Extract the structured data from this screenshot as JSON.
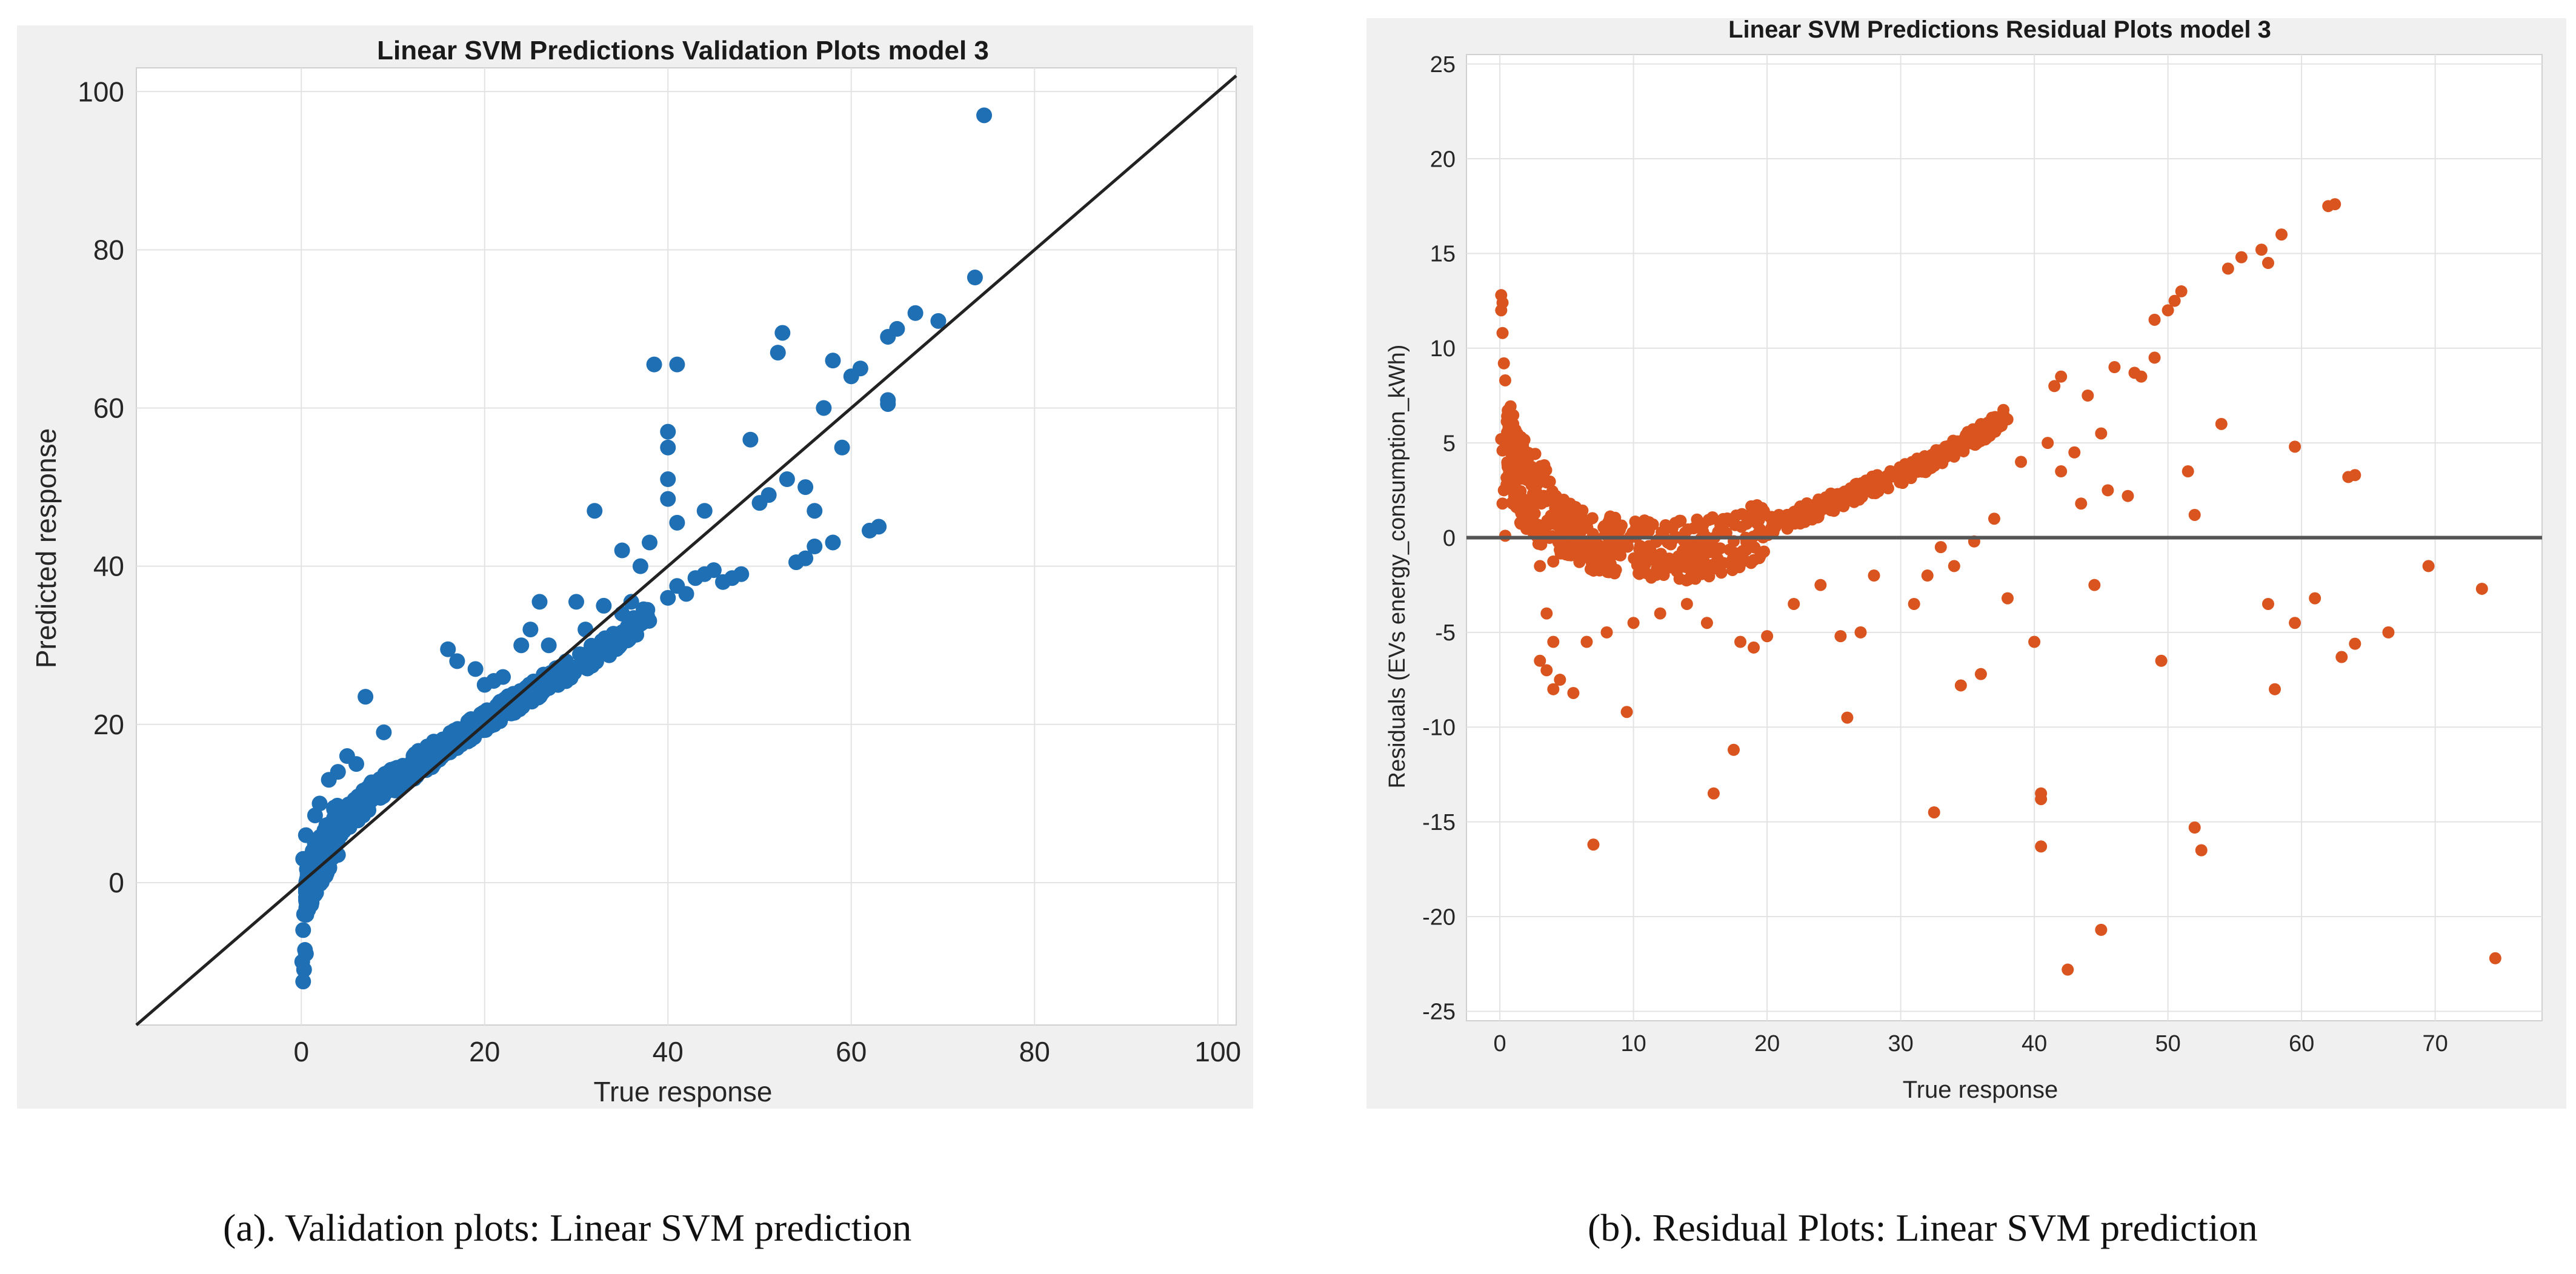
{
  "colors": {
    "panel_bg": "#f0f0f0",
    "plot_bg": "#ffffff",
    "grid": "#e3e3e3",
    "axis": "#262626",
    "validation_points": "#1f6fb5",
    "residual_points": "#d9541e",
    "reference_line": "#222222"
  },
  "chart_data": [
    {
      "type": "scatter",
      "title": "Linear SVM Predictions Validation Plots model 3",
      "xlabel": "True response",
      "ylabel": "Predicted response",
      "xlim": [
        -18,
        102
      ],
      "ylim": [
        -18,
        103
      ],
      "xticks": [
        0,
        20,
        40,
        60,
        80,
        100
      ],
      "yticks": [
        0,
        20,
        40,
        60,
        80,
        100
      ],
      "grid": true,
      "reference_line": {
        "type": "identity",
        "label": "y = x"
      },
      "outliers": [
        [
          74.5,
          97
        ],
        [
          73.5,
          76.5
        ],
        [
          69.5,
          71
        ],
        [
          67,
          72
        ],
        [
          65,
          70
        ],
        [
          64,
          69
        ],
        [
          61,
          65
        ],
        [
          60,
          64
        ],
        [
          58,
          66
        ],
        [
          57,
          60
        ],
        [
          59,
          55
        ],
        [
          56,
          47
        ],
        [
          64,
          61
        ],
        [
          64,
          60.5
        ],
        [
          63,
          45
        ],
        [
          62,
          44.5
        ],
        [
          58,
          43
        ],
        [
          56,
          42.5
        ],
        [
          55,
          41
        ],
        [
          54,
          40.5
        ],
        [
          52.5,
          69.5
        ],
        [
          52,
          67
        ],
        [
          53,
          51
        ],
        [
          55,
          50
        ],
        [
          51,
          49
        ],
        [
          50,
          48
        ],
        [
          49,
          56
        ],
        [
          48,
          39
        ],
        [
          47,
          38.5
        ],
        [
          46,
          38
        ],
        [
          45,
          39.5
        ],
        [
          44,
          39
        ],
        [
          43,
          38.5
        ],
        [
          42,
          36.5
        ],
        [
          41,
          37.5
        ],
        [
          40,
          36
        ],
        [
          38.5,
          65.5
        ],
        [
          41,
          65.5
        ],
        [
          40,
          57
        ],
        [
          40,
          55
        ],
        [
          40,
          51
        ],
        [
          40,
          48.5
        ],
        [
          41,
          45.5
        ],
        [
          44,
          47
        ],
        [
          38,
          43
        ],
        [
          35,
          42
        ],
        [
          37,
          40
        ],
        [
          36,
          35.5
        ],
        [
          35,
          34
        ],
        [
          34,
          31
        ],
        [
          33,
          35
        ],
        [
          32,
          47
        ],
        [
          30,
          35.5
        ],
        [
          31,
          32
        ],
        [
          27,
          30
        ],
        [
          26,
          35.5
        ],
        [
          25,
          32
        ],
        [
          24,
          30
        ],
        [
          19,
          27
        ],
        [
          17,
          28
        ],
        [
          16,
          29.5
        ],
        [
          22,
          26
        ],
        [
          21,
          25.5
        ],
        [
          20,
          25
        ],
        [
          9,
          19
        ],
        [
          7,
          23.5
        ],
        [
          6,
          15
        ],
        [
          5,
          16
        ],
        [
          4,
          14
        ],
        [
          3,
          13
        ],
        [
          2,
          10
        ],
        [
          1.5,
          8.5
        ],
        [
          0.5,
          6
        ],
        [
          0.2,
          3
        ],
        [
          0.3,
          -4
        ],
        [
          0.2,
          -6
        ],
        [
          0.4,
          -8.5
        ],
        [
          0.1,
          -10
        ],
        [
          0.3,
          -11
        ],
        [
          0.2,
          -12.5
        ],
        [
          0.5,
          -9
        ],
        [
          1,
          0.5
        ],
        [
          1.5,
          -1.5
        ],
        [
          0.8,
          -2
        ]
      ],
      "band": {
        "description": "dense point cloud along curve predicted ≈ f(true)",
        "x_range": [
          0.5,
          38
        ],
        "curve": [
          [
            0.5,
            -1
          ],
          [
            2,
            3
          ],
          [
            4,
            7
          ],
          [
            8,
            11.5
          ],
          [
            12,
            14.5
          ],
          [
            16,
            17.5
          ],
          [
            20,
            20.5
          ],
          [
            25,
            24
          ],
          [
            30,
            27.5
          ],
          [
            35,
            31
          ],
          [
            38,
            34
          ]
        ]
      }
    },
    {
      "type": "scatter",
      "title": "Linear SVM Predictions Residual Plots model 3",
      "xlabel": "True response",
      "ylabel": "Residuals (EVs energy_consumption_kWh)",
      "xlim": [
        -2.5,
        78
      ],
      "ylim": [
        -25.5,
        25.5
      ],
      "xticks": [
        0,
        10,
        20,
        30,
        40,
        50,
        60,
        70
      ],
      "yticks": [
        25,
        20,
        15,
        10,
        5,
        0,
        -5,
        -10,
        -15,
        -20,
        -25
      ],
      "grid": true,
      "reference_line": {
        "type": "horizontal",
        "y": 0
      },
      "outliers": [
        [
          0.1,
          12.8
        ],
        [
          0.2,
          12.4
        ],
        [
          0.1,
          12
        ],
        [
          0.2,
          10.8
        ],
        [
          0.3,
          9.2
        ],
        [
          0.4,
          8.3
        ],
        [
          0.1,
          5.2
        ],
        [
          0.2,
          4.6
        ],
        [
          0.3,
          2.5
        ],
        [
          0.2,
          1.8
        ],
        [
          0.4,
          0.1
        ],
        [
          1,
          6
        ],
        [
          1.5,
          4
        ],
        [
          2,
          3.5
        ],
        [
          2.5,
          2
        ],
        [
          3,
          -1.5
        ],
        [
          3.5,
          -4
        ],
        [
          4,
          -5.5
        ],
        [
          3,
          -6.5
        ],
        [
          3.5,
          -7
        ],
        [
          4.5,
          -7.5
        ],
        [
          5.5,
          -8.2
        ],
        [
          4,
          -8
        ],
        [
          6.5,
          -5.5
        ],
        [
          7,
          -16.2
        ],
        [
          9.5,
          -9.2
        ],
        [
          8,
          -5
        ],
        [
          10,
          -4.5
        ],
        [
          12,
          -4
        ],
        [
          14,
          -3.5
        ],
        [
          15.5,
          -4.5
        ],
        [
          16,
          -13.5
        ],
        [
          17.5,
          -11.2
        ],
        [
          18,
          -5.5
        ],
        [
          19,
          -5.8
        ],
        [
          20,
          -5.2
        ],
        [
          22,
          -3.5
        ],
        [
          24,
          -2.5
        ],
        [
          25.5,
          -5.2
        ],
        [
          26,
          -9.5
        ],
        [
          27,
          -5
        ],
        [
          28,
          -2
        ],
        [
          31,
          -3.5
        ],
        [
          32,
          -2
        ],
        [
          32.5,
          -14.5
        ],
        [
          33,
          -0.5
        ],
        [
          34,
          -1.5
        ],
        [
          34.5,
          -7.8
        ],
        [
          35.5,
          -0.2
        ],
        [
          36,
          -7.2
        ],
        [
          37,
          1
        ],
        [
          38,
          -3.2
        ],
        [
          39,
          4
        ],
        [
          40,
          -5.5
        ],
        [
          40.5,
          -13.5
        ],
        [
          40.5,
          -13.8
        ],
        [
          40.5,
          -16.3
        ],
        [
          41,
          5
        ],
        [
          41.5,
          8
        ],
        [
          42,
          8.5
        ],
        [
          42,
          3.5
        ],
        [
          42.5,
          -22.8
        ],
        [
          43,
          4.5
        ],
        [
          43.5,
          1.8
        ],
        [
          44,
          7.5
        ],
        [
          44.5,
          -2.5
        ],
        [
          45,
          -20.7
        ],
        [
          45,
          5.5
        ],
        [
          45.5,
          2.5
        ],
        [
          46,
          9
        ],
        [
          47,
          2.2
        ],
        [
          47.5,
          8.7
        ],
        [
          48,
          8.5
        ],
        [
          49,
          9.5
        ],
        [
          49.5,
          -6.5
        ],
        [
          49,
          11.5
        ],
        [
          50,
          12
        ],
        [
          50.5,
          12.5
        ],
        [
          51,
          13
        ],
        [
          51.5,
          3.5
        ],
        [
          52,
          1.2
        ],
        [
          52,
          -15.3
        ],
        [
          52.5,
          -16.5
        ],
        [
          54,
          6
        ],
        [
          54.5,
          14.2
        ],
        [
          55.5,
          14.8
        ],
        [
          57,
          15.2
        ],
        [
          57.5,
          14.5
        ],
        [
          57.5,
          -3.5
        ],
        [
          58,
          -8
        ],
        [
          58.5,
          16
        ],
        [
          59.5,
          4.8
        ],
        [
          59.5,
          -4.5
        ],
        [
          61,
          -3.2
        ],
        [
          62,
          17.5
        ],
        [
          62.5,
          17.6
        ],
        [
          63,
          -6.3
        ],
        [
          63.5,
          3.2
        ],
        [
          64,
          3.3
        ],
        [
          64,
          -5.6
        ],
        [
          66.5,
          -5
        ],
        [
          69.5,
          -1.5
        ],
        [
          73.5,
          -2.7
        ],
        [
          74.5,
          -22.2
        ]
      ],
      "band": {
        "description": "dense residual cloud forming U-shaped curve",
        "x_range": [
          0.5,
          38
        ],
        "curve": [
          [
            0.5,
            5
          ],
          [
            2,
            2.5
          ],
          [
            4,
            0.8
          ],
          [
            6,
            0
          ],
          [
            9,
            -0.5
          ],
          [
            12,
            -0.8
          ],
          [
            15,
            -0.6
          ],
          [
            18,
            0
          ],
          [
            21,
            0.8
          ],
          [
            24,
            1.6
          ],
          [
            27,
            2.5
          ],
          [
            30,
            3.3
          ],
          [
            33,
            4.3
          ],
          [
            36,
            5.5
          ],
          [
            38,
            6.6
          ]
        ]
      }
    }
  ],
  "captions": [
    "(a). Validation plots: Linear SVM prediction",
    "(b). Residual Plots: Linear SVM prediction"
  ]
}
